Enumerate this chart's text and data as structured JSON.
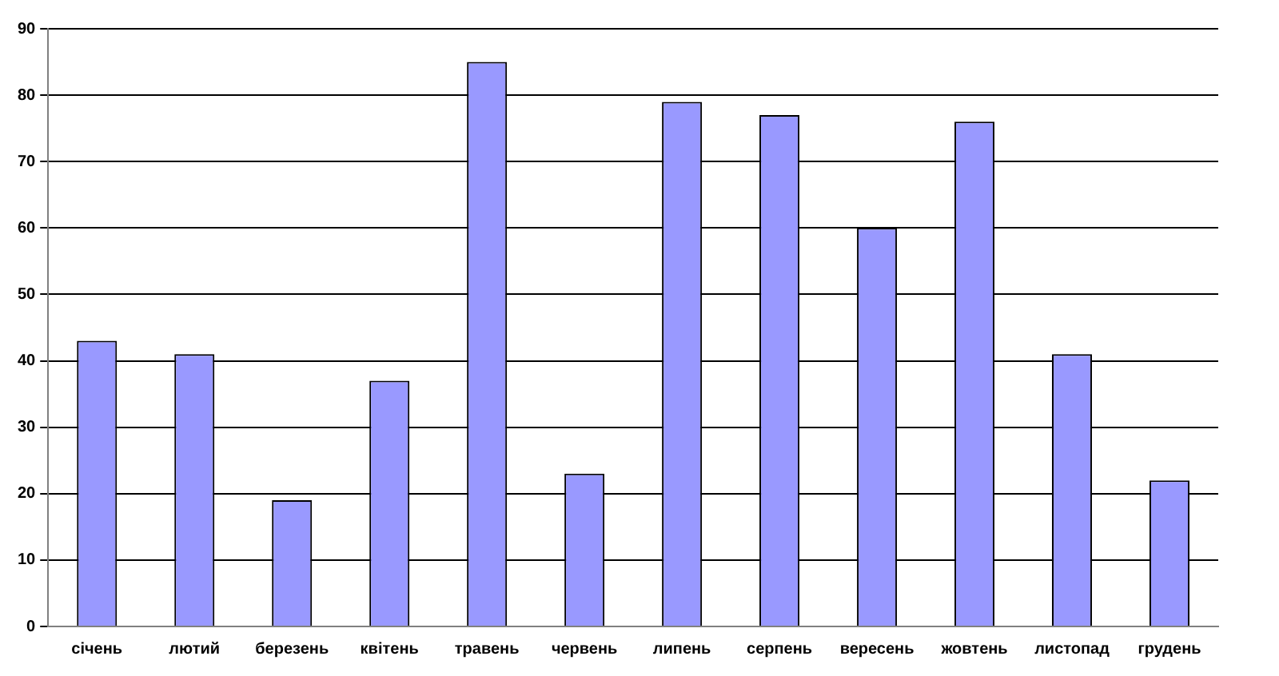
{
  "chart_data": {
    "type": "bar",
    "categories": [
      "січень",
      "лютий",
      "березень",
      "квітень",
      "травень",
      "червень",
      "липень",
      "серпень",
      "вересень",
      "жовтень",
      "листопад",
      "грудень"
    ],
    "values": [
      43,
      41,
      19,
      37,
      85,
      23,
      79,
      77,
      60,
      76,
      41,
      22
    ],
    "color": "#9999ff",
    "ylim": [
      0,
      90
    ],
    "yticks": [
      0,
      10,
      20,
      30,
      40,
      50,
      60,
      70,
      80,
      90
    ],
    "grid": "y",
    "legend": false
  }
}
